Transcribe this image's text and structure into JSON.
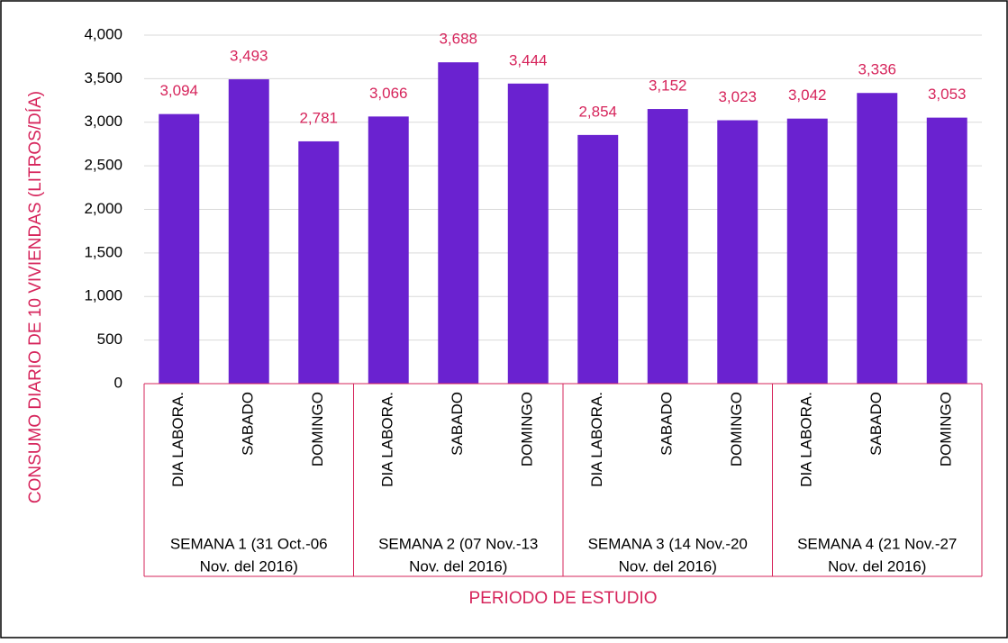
{
  "chart_data": {
    "type": "bar",
    "y_axis_label": "CONSUMO DIARIO DE 10 VIVIENDAS (LITROS/DÍA)",
    "x_axis_label": "PERIODO DE ESTUDIO",
    "categories": [
      "DIA LABORA.",
      "SABADO",
      "DOMINGO",
      "DIA LABORA.",
      "SABADO",
      "DOMINGO",
      "DIA LABORA.",
      "SABADO",
      "DOMINGO",
      "DIA LABORA.",
      "SABADO",
      "DOMINGO"
    ],
    "groups": [
      {
        "name": [
          "SEMANA 1 (31 Oct.-06",
          "Nov. del 2016)"
        ],
        "size": 3
      },
      {
        "name": [
          "SEMANA 2 (07 Nov.-13",
          "Nov. del 2016)"
        ],
        "size": 3
      },
      {
        "name": [
          "SEMANA 3 (14 Nov.-20",
          "Nov. del 2016)"
        ],
        "size": 3
      },
      {
        "name": [
          "SEMANA 4 (21 Nov.-27",
          "Nov. del 2016)"
        ],
        "size": 3
      }
    ],
    "values": [
      3094,
      3493,
      2781,
      3066,
      3688,
      3444,
      2854,
      3152,
      3023,
      3042,
      3336,
      3053
    ],
    "value_labels": [
      "3,094",
      "3,493",
      "2,781",
      "3,066",
      "3,688",
      "3,444",
      "2,854",
      "3,152",
      "3,023",
      "3,042",
      "3,336",
      "3,053"
    ],
    "color": "#6a22d0",
    "label_color": "#d6245b",
    "ylim": [
      0,
      4000
    ],
    "yticks": [
      0,
      500,
      {
        "value": 1000,
        "label": "1,000"
      },
      {
        "value": 1500,
        "label": "1,500"
      },
      {
        "value": 2000,
        "label": "2,000"
      },
      {
        "value": 2500,
        "label": "2,500"
      },
      {
        "value": 3000,
        "label": "3,000"
      },
      {
        "value": 3500,
        "label": "3,500"
      },
      {
        "value": 4000,
        "label": "4,000"
      }
    ],
    "grid": true
  }
}
